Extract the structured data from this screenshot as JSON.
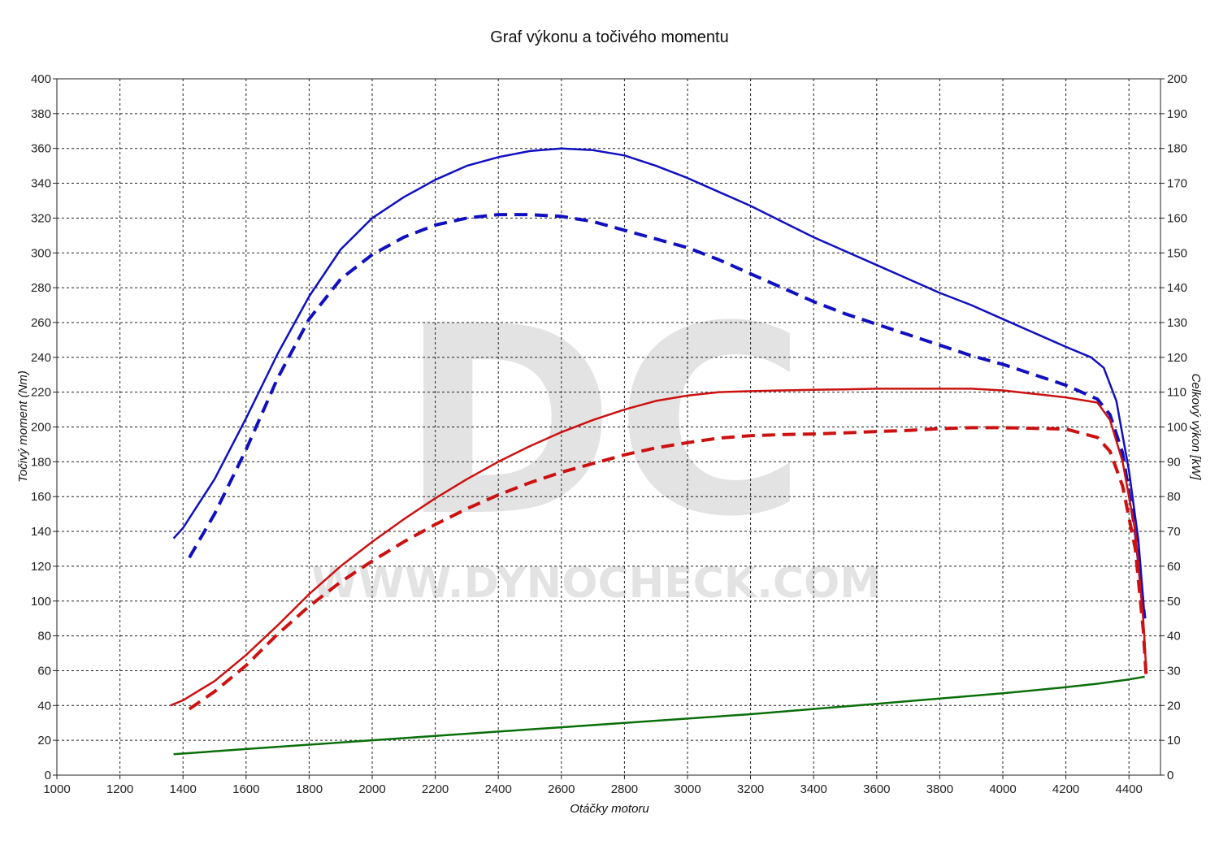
{
  "chart_data": {
    "type": "line",
    "title": "Graf výkonu a točivého momentu",
    "xlabel": "Otáčky motoru",
    "ylabel_left": "Točivý moment (Nm)",
    "ylabel_right": "Celkový výkon [kW]",
    "xlim": [
      1000,
      4500
    ],
    "ylim_left": [
      0,
      400
    ],
    "ylim_right": [
      0,
      200
    ],
    "x_ticks": [
      1000,
      1200,
      1400,
      1600,
      1800,
      2000,
      2200,
      2400,
      2600,
      2800,
      3000,
      3200,
      3400,
      3600,
      3800,
      4000,
      4200,
      4400
    ],
    "y_ticks_left": [
      0,
      20,
      40,
      60,
      80,
      100,
      120,
      140,
      160,
      180,
      200,
      220,
      240,
      260,
      280,
      300,
      320,
      340,
      360,
      380,
      400
    ],
    "y_ticks_right": [
      0,
      10,
      20,
      30,
      40,
      50,
      60,
      70,
      80,
      90,
      100,
      110,
      120,
      130,
      140,
      150,
      160,
      170,
      180,
      190,
      200
    ],
    "grid": true,
    "watermark": {
      "letters": "DC",
      "url": "WWW.DYNOCHECK.COM"
    },
    "series": [
      {
        "axis": "left",
        "color": "#1010c0",
        "style": "solid",
        "points": [
          [
            1370,
            136
          ],
          [
            1400,
            142
          ],
          [
            1500,
            170
          ],
          [
            1600,
            205
          ],
          [
            1700,
            242
          ],
          [
            1800,
            275
          ],
          [
            1900,
            302
          ],
          [
            2000,
            320
          ],
          [
            2100,
            332
          ],
          [
            2200,
            342
          ],
          [
            2300,
            350
          ],
          [
            2400,
            355
          ],
          [
            2500,
            358.5
          ],
          [
            2600,
            360
          ],
          [
            2700,
            359
          ],
          [
            2800,
            356
          ],
          [
            2900,
            350
          ],
          [
            3000,
            343
          ],
          [
            3100,
            335
          ],
          [
            3200,
            327
          ],
          [
            3300,
            318
          ],
          [
            3400,
            309
          ],
          [
            3500,
            301
          ],
          [
            3600,
            293
          ],
          [
            3700,
            285
          ],
          [
            3800,
            277
          ],
          [
            3900,
            270
          ],
          [
            4000,
            262
          ],
          [
            4100,
            254
          ],
          [
            4200,
            246
          ],
          [
            4280,
            240
          ],
          [
            4320,
            234
          ],
          [
            4360,
            215
          ],
          [
            4400,
            175
          ],
          [
            4430,
            135
          ],
          [
            4450,
            90
          ]
        ]
      },
      {
        "axis": "left",
        "color": "#1010c0",
        "style": "dashed",
        "points": [
          [
            1420,
            125
          ],
          [
            1500,
            150
          ],
          [
            1600,
            187
          ],
          [
            1700,
            228
          ],
          [
            1800,
            262
          ],
          [
            1900,
            285
          ],
          [
            2000,
            299
          ],
          [
            2100,
            309
          ],
          [
            2200,
            316
          ],
          [
            2300,
            320
          ],
          [
            2400,
            322
          ],
          [
            2500,
            322
          ],
          [
            2600,
            321
          ],
          [
            2700,
            318
          ],
          [
            2800,
            313
          ],
          [
            2900,
            308
          ],
          [
            3000,
            303
          ],
          [
            3100,
            296
          ],
          [
            3200,
            288
          ],
          [
            3300,
            280
          ],
          [
            3400,
            272
          ],
          [
            3500,
            265
          ],
          [
            3600,
            259
          ],
          [
            3700,
            253
          ],
          [
            3800,
            247
          ],
          [
            3900,
            241
          ],
          [
            4000,
            236
          ],
          [
            4100,
            230
          ],
          [
            4200,
            224
          ],
          [
            4300,
            216
          ],
          [
            4340,
            207
          ],
          [
            4380,
            185
          ],
          [
            4420,
            140
          ],
          [
            4450,
            90
          ]
        ]
      },
      {
        "axis": "right",
        "color": "#cc1111",
        "style": "solid",
        "points": [
          [
            1360,
            20
          ],
          [
            1400,
            21.5
          ],
          [
            1500,
            27
          ],
          [
            1600,
            34.5
          ],
          [
            1700,
            43
          ],
          [
            1800,
            52
          ],
          [
            1900,
            60
          ],
          [
            2000,
            67
          ],
          [
            2100,
            73.5
          ],
          [
            2200,
            79.5
          ],
          [
            2300,
            85
          ],
          [
            2400,
            90
          ],
          [
            2500,
            94.5
          ],
          [
            2600,
            98.5
          ],
          [
            2700,
            102
          ],
          [
            2800,
            105
          ],
          [
            2900,
            107.5
          ],
          [
            3000,
            109
          ],
          [
            3100,
            110
          ],
          [
            3200,
            110.3
          ],
          [
            3300,
            110.5
          ],
          [
            3400,
            110.7
          ],
          [
            3500,
            110.8
          ],
          [
            3600,
            111
          ],
          [
            3700,
            111
          ],
          [
            3800,
            111
          ],
          [
            3900,
            111
          ],
          [
            4000,
            110.5
          ],
          [
            4100,
            109.5
          ],
          [
            4200,
            108.5
          ],
          [
            4300,
            107
          ],
          [
            4340,
            102
          ],
          [
            4380,
            90
          ],
          [
            4420,
            70
          ],
          [
            4445,
            45
          ],
          [
            4455,
            30
          ]
        ]
      },
      {
        "axis": "right",
        "color": "#cc1111",
        "style": "dashed",
        "points": [
          [
            1420,
            19
          ],
          [
            1500,
            24
          ],
          [
            1600,
            31.5
          ],
          [
            1700,
            40.5
          ],
          [
            1800,
            48.5
          ],
          [
            1900,
            55.5
          ],
          [
            2000,
            61.5
          ],
          [
            2100,
            67
          ],
          [
            2200,
            72
          ],
          [
            2300,
            76.5
          ],
          [
            2400,
            80.5
          ],
          [
            2500,
            84
          ],
          [
            2600,
            87
          ],
          [
            2700,
            89.5
          ],
          [
            2800,
            92
          ],
          [
            2900,
            94
          ],
          [
            3000,
            95.5
          ],
          [
            3100,
            96.8
          ],
          [
            3200,
            97.5
          ],
          [
            3300,
            97.8
          ],
          [
            3400,
            98
          ],
          [
            3500,
            98.3
          ],
          [
            3600,
            98.7
          ],
          [
            3700,
            99
          ],
          [
            3800,
            99.5
          ],
          [
            3900,
            99.8
          ],
          [
            4000,
            99.8
          ],
          [
            4100,
            99.6
          ],
          [
            4200,
            99.4
          ],
          [
            4300,
            97
          ],
          [
            4340,
            93
          ],
          [
            4380,
            83
          ],
          [
            4420,
            65
          ],
          [
            4445,
            42
          ],
          [
            4455,
            28
          ]
        ]
      },
      {
        "axis": "left",
        "color": "#0a6e0a",
        "style": "solid",
        "points": [
          [
            1370,
            12
          ],
          [
            1600,
            15
          ],
          [
            1800,
            17.5
          ],
          [
            2000,
            20
          ],
          [
            2200,
            22.5
          ],
          [
            2400,
            25
          ],
          [
            2600,
            27.5
          ],
          [
            2800,
            30
          ],
          [
            3000,
            32.5
          ],
          [
            3200,
            35
          ],
          [
            3400,
            38
          ],
          [
            3600,
            41
          ],
          [
            3800,
            44
          ],
          [
            4000,
            47
          ],
          [
            4200,
            50.5
          ],
          [
            4300,
            52.5
          ],
          [
            4400,
            55
          ],
          [
            4450,
            56.5
          ]
        ]
      }
    ]
  }
}
